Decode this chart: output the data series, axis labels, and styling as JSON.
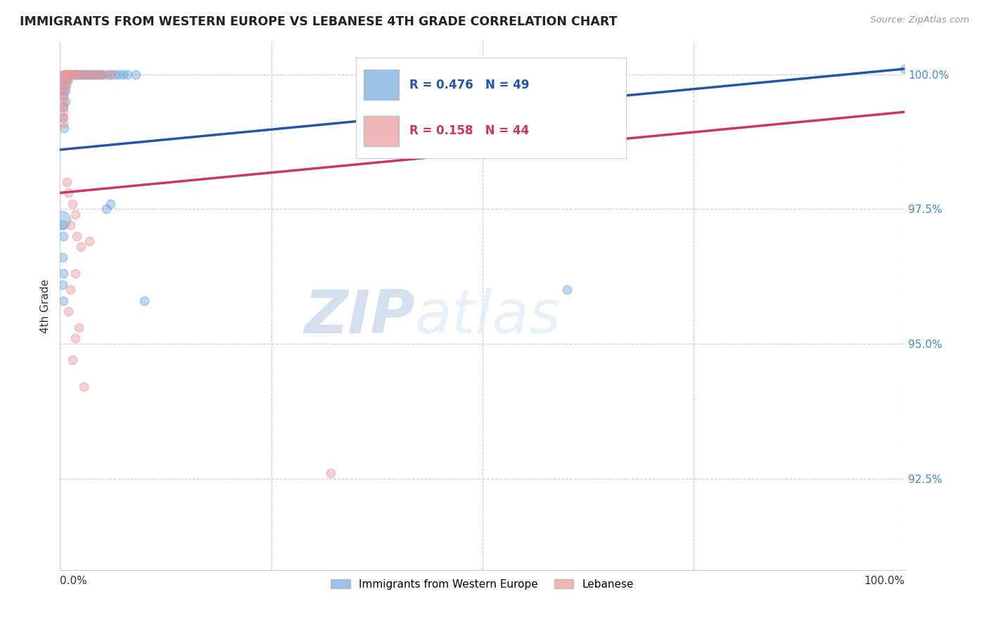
{
  "title": "IMMIGRANTS FROM WESTERN EUROPE VS LEBANESE 4TH GRADE CORRELATION CHART",
  "source": "Source: ZipAtlas.com",
  "ylabel": "4th Grade",
  "ylabel_right_labels": [
    "100.0%",
    "97.5%",
    "95.0%",
    "92.5%"
  ],
  "ylabel_right_values": [
    1.0,
    0.975,
    0.95,
    0.925
  ],
  "xlim": [
    0.0,
    1.0
  ],
  "ylim": [
    0.908,
    1.006
  ],
  "legend_blue_label": "Immigrants from Western Europe",
  "legend_pink_label": "Lebanese",
  "R_blue": 0.476,
  "N_blue": 49,
  "R_pink": 0.158,
  "N_pink": 44,
  "blue_color": "#6fa8dc",
  "pink_color": "#ea9999",
  "trend_blue_color": "#2255aa",
  "trend_pink_color": "#cc3366",
  "trend_blue_x0": 0.0,
  "trend_blue_y0": 0.986,
  "trend_blue_x1": 1.0,
  "trend_blue_y1": 1.001,
  "trend_pink_x0": 0.0,
  "trend_pink_y0": 0.978,
  "trend_pink_x1": 1.0,
  "trend_pink_y1": 0.993,
  "blue_points": [
    [
      0.005,
      1.0
    ],
    [
      0.008,
      1.0
    ],
    [
      0.01,
      1.0
    ],
    [
      0.012,
      1.0
    ],
    [
      0.015,
      1.0
    ],
    [
      0.018,
      1.0
    ],
    [
      0.02,
      1.0
    ],
    [
      0.022,
      1.0
    ],
    [
      0.025,
      1.0
    ],
    [
      0.028,
      1.0
    ],
    [
      0.03,
      1.0
    ],
    [
      0.033,
      1.0
    ],
    [
      0.035,
      1.0
    ],
    [
      0.038,
      1.0
    ],
    [
      0.04,
      1.0
    ],
    [
      0.042,
      1.0
    ],
    [
      0.045,
      1.0
    ],
    [
      0.048,
      1.0
    ],
    [
      0.05,
      1.0
    ],
    [
      0.055,
      1.0
    ],
    [
      0.06,
      1.0
    ],
    [
      0.065,
      1.0
    ],
    [
      0.07,
      1.0
    ],
    [
      0.075,
      1.0
    ],
    [
      0.08,
      1.0
    ],
    [
      0.09,
      1.0
    ],
    [
      0.004,
      0.999
    ],
    [
      0.007,
      0.999
    ],
    [
      0.01,
      0.999
    ],
    [
      0.004,
      0.998
    ],
    [
      0.007,
      0.998
    ],
    [
      0.004,
      0.997
    ],
    [
      0.006,
      0.997
    ],
    [
      0.004,
      0.996
    ],
    [
      0.006,
      0.995
    ],
    [
      0.004,
      0.994
    ],
    [
      0.003,
      0.992
    ],
    [
      0.005,
      0.99
    ],
    [
      0.06,
      0.976
    ],
    [
      0.055,
      0.975
    ],
    [
      0.003,
      0.972
    ],
    [
      0.004,
      0.97
    ],
    [
      0.003,
      0.966
    ],
    [
      0.004,
      0.963
    ],
    [
      0.003,
      0.961
    ],
    [
      0.004,
      0.958
    ],
    [
      0.1,
      0.958
    ],
    [
      0.6,
      0.96
    ],
    [
      1.0,
      1.001
    ]
  ],
  "pink_points": [
    [
      0.004,
      1.0
    ],
    [
      0.006,
      1.0
    ],
    [
      0.008,
      1.0
    ],
    [
      0.01,
      1.0
    ],
    [
      0.012,
      1.0
    ],
    [
      0.015,
      1.0
    ],
    [
      0.018,
      1.0
    ],
    [
      0.02,
      1.0
    ],
    [
      0.025,
      1.0
    ],
    [
      0.03,
      1.0
    ],
    [
      0.035,
      1.0
    ],
    [
      0.04,
      1.0
    ],
    [
      0.045,
      1.0
    ],
    [
      0.05,
      1.0
    ],
    [
      0.06,
      1.0
    ],
    [
      0.004,
      0.999
    ],
    [
      0.006,
      0.999
    ],
    [
      0.008,
      0.999
    ],
    [
      0.004,
      0.998
    ],
    [
      0.006,
      0.998
    ],
    [
      0.004,
      0.997
    ],
    [
      0.004,
      0.996
    ],
    [
      0.004,
      0.995
    ],
    [
      0.004,
      0.994
    ],
    [
      0.004,
      0.993
    ],
    [
      0.004,
      0.992
    ],
    [
      0.015,
      0.976
    ],
    [
      0.018,
      0.974
    ],
    [
      0.012,
      0.972
    ],
    [
      0.02,
      0.97
    ],
    [
      0.025,
      0.968
    ],
    [
      0.018,
      0.963
    ],
    [
      0.012,
      0.96
    ],
    [
      0.01,
      0.956
    ],
    [
      0.022,
      0.953
    ],
    [
      0.018,
      0.951
    ],
    [
      0.015,
      0.947
    ],
    [
      0.028,
      0.942
    ],
    [
      0.55,
      1.0
    ],
    [
      0.32,
      0.926
    ],
    [
      0.004,
      0.991
    ],
    [
      0.035,
      0.969
    ],
    [
      0.01,
      0.978
    ],
    [
      0.008,
      0.98
    ]
  ],
  "blue_large_point": [
    0.001,
    0.973
  ],
  "blue_large_size": 350,
  "watermark_zip": "ZIP",
  "watermark_atlas": "atlas",
  "background_color": "#ffffff",
  "grid_color": "#cccccc"
}
